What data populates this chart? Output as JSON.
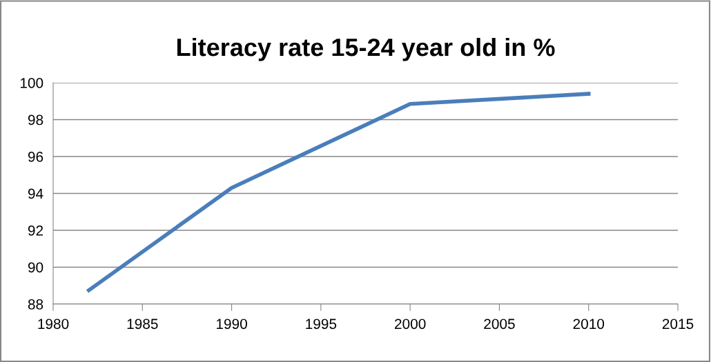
{
  "chart_data": {
    "type": "line",
    "title": "Literacy rate 15-24 year old in %",
    "x": [
      1982,
      1990,
      2000,
      2010
    ],
    "series": [
      {
        "color": "#4a7ebb",
        "values": [
          88.75,
          94.3,
          98.85,
          99.4
        ]
      }
    ],
    "xlim": [
      1980,
      2015
    ],
    "xticks": [
      1980,
      1985,
      1990,
      1995,
      2000,
      2005,
      2010,
      2015
    ],
    "ylim": [
      88,
      100
    ],
    "yticks": [
      88,
      90,
      92,
      94,
      96,
      98,
      100
    ],
    "grid": "y",
    "legend": false,
    "marker": "none",
    "line_style": "solid"
  }
}
